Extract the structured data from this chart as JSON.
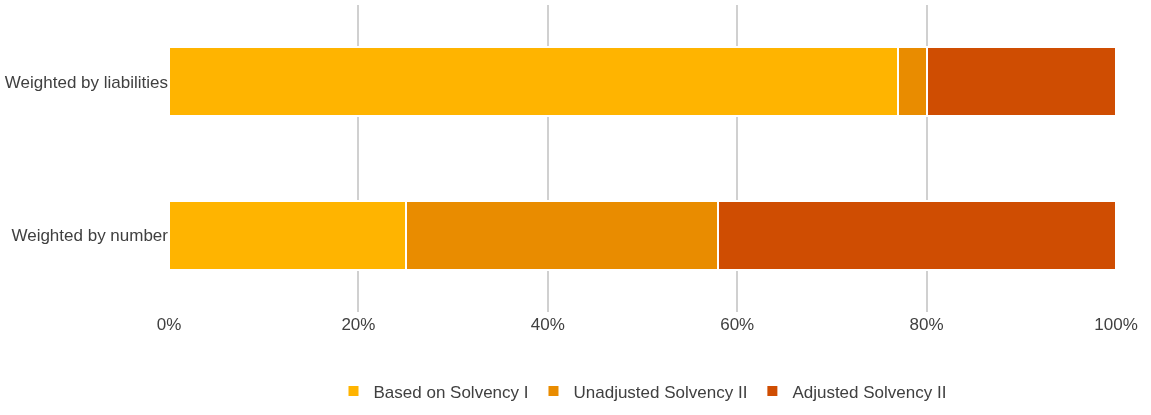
{
  "chart_data": {
    "type": "bar",
    "orientation": "horizontal",
    "stacked": true,
    "categories": [
      "Weighted by liabilities",
      "Weighted by number"
    ],
    "series": [
      {
        "name": "Based on Solvency I",
        "color": "#ffb400",
        "values": [
          77,
          25
        ]
      },
      {
        "name": "Unadjusted Solvency II",
        "color": "#e98c00",
        "values": [
          3,
          33
        ]
      },
      {
        "name": "Adjusted Solvency II",
        "color": "#cf4d02",
        "values": [
          20,
          42
        ]
      }
    ],
    "xlim": [
      0,
      100
    ],
    "xticks": [
      {
        "value": 0,
        "label": "0%"
      },
      {
        "value": 20,
        "label": "20%"
      },
      {
        "value": 40,
        "label": "40%"
      },
      {
        "value": 60,
        "label": "60%"
      },
      {
        "value": 80,
        "label": "80%"
      },
      {
        "value": 100,
        "label": "100%"
      }
    ],
    "grid": "x",
    "legend": "bottom"
  }
}
